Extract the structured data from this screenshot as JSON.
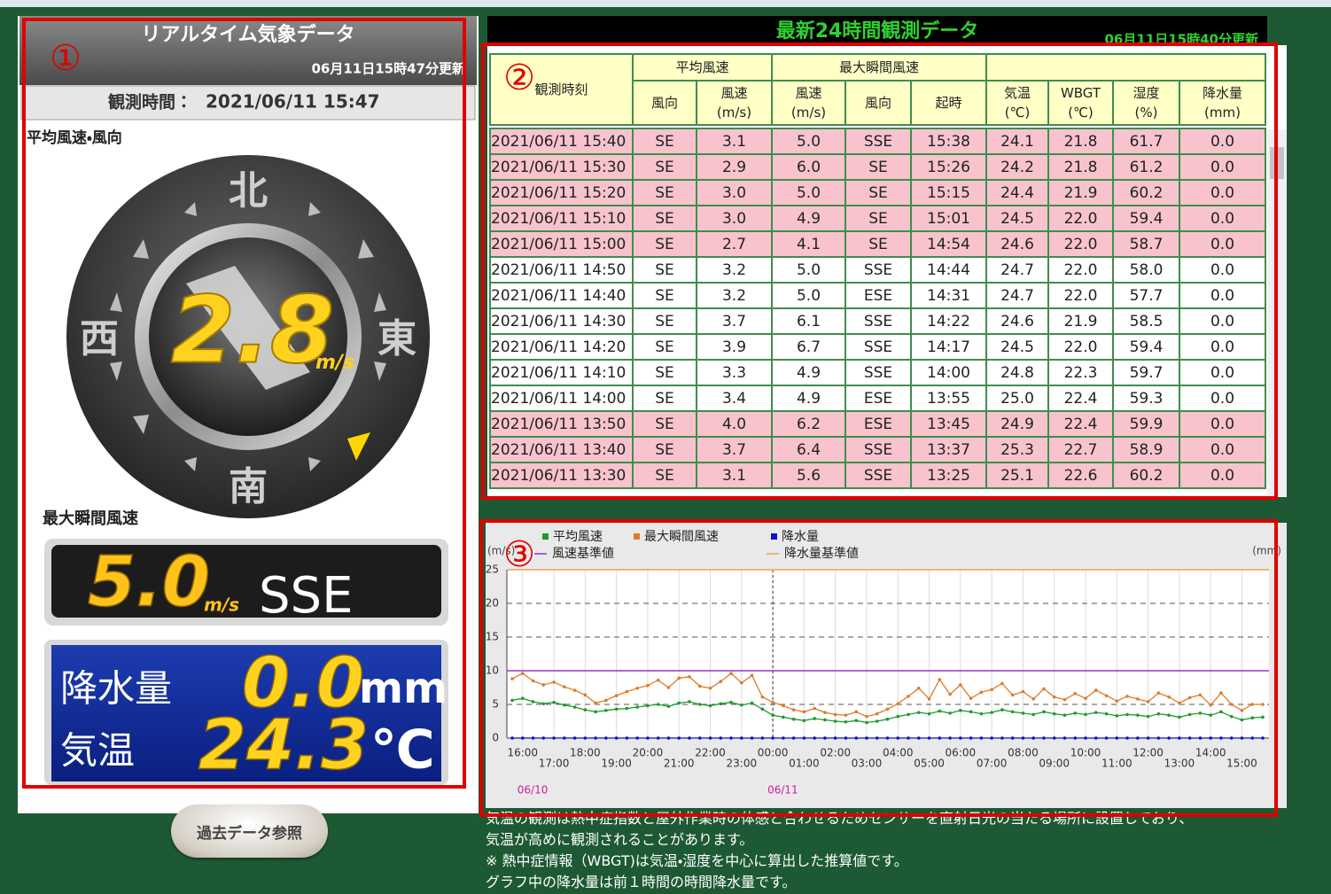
{
  "annotations": [
    "①",
    "②",
    "③"
  ],
  "realtime": {
    "title": "リアルタイム気象データ",
    "updated": "06月11日15時47分更新",
    "obs_label": "観測時間：",
    "obs_time": "2021/06/11 15:47",
    "avg_label": "平均風速・風向",
    "directions": {
      "north": "北",
      "east": "東",
      "south": "南",
      "west": "西"
    },
    "avg_speed": "2.8",
    "speed_unit": "m/s",
    "max_label": "最大瞬間風速",
    "max_speed": "5.0",
    "max_unit": "m/s",
    "max_direction": "SSE",
    "rain_label": "降水量",
    "rain": "0.0",
    "rain_unit": "mm",
    "temp_label": "気温",
    "temp": "24.3",
    "temp_unit": "℃"
  },
  "button": "過去データ参照",
  "table": {
    "title": "最新24時間観測データ",
    "updated": "06月11日15時40分更新",
    "highlight_color": "#f8c3cc",
    "header": {
      "time": "観測時刻",
      "avg_group": "平均風速",
      "max_group": "最大瞬間風速",
      "columns": [
        {
          "label": "風向"
        },
        {
          "label": "風速",
          "unit": "(m/s)"
        },
        {
          "label": "風速",
          "unit": "(m/s)"
        },
        {
          "label": "風向"
        },
        {
          "label": "起時"
        },
        {
          "label": "気温",
          "unit": "(℃)"
        },
        {
          "label": "WBGT",
          "unit": "(℃)"
        },
        {
          "label": "湿度",
          "unit": "(%)"
        },
        {
          "label": "降水量",
          "unit": "(mm)"
        }
      ]
    },
    "rows": [
      {
        "highlight": true,
        "cells": [
          "2021/06/11 15:40",
          "SE",
          "3.1",
          "5.0",
          "SSE",
          "15:38",
          "24.1",
          "21.8",
          "61.7",
          "0.0"
        ]
      },
      {
        "highlight": true,
        "cells": [
          "2021/06/11 15:30",
          "SE",
          "2.9",
          "6.0",
          "SE",
          "15:26",
          "24.2",
          "21.8",
          "61.2",
          "0.0"
        ]
      },
      {
        "highlight": true,
        "cells": [
          "2021/06/11 15:20",
          "SE",
          "3.0",
          "5.0",
          "SE",
          "15:15",
          "24.4",
          "21.9",
          "60.2",
          "0.0"
        ]
      },
      {
        "highlight": true,
        "cells": [
          "2021/06/11 15:10",
          "SE",
          "3.0",
          "4.9",
          "SE",
          "15:01",
          "24.5",
          "22.0",
          "59.4",
          "0.0"
        ]
      },
      {
        "highlight": true,
        "cells": [
          "2021/06/11 15:00",
          "SE",
          "2.7",
          "4.1",
          "SE",
          "14:54",
          "24.6",
          "22.0",
          "58.7",
          "0.0"
        ]
      },
      {
        "highlight": false,
        "cells": [
          "2021/06/11 14:50",
          "SE",
          "3.2",
          "5.0",
          "SSE",
          "14:44",
          "24.7",
          "22.0",
          "58.0",
          "0.0"
        ]
      },
      {
        "highlight": false,
        "cells": [
          "2021/06/11 14:40",
          "SE",
          "3.2",
          "5.0",
          "ESE",
          "14:31",
          "24.7",
          "22.0",
          "57.7",
          "0.0"
        ]
      },
      {
        "highlight": false,
        "cells": [
          "2021/06/11 14:30",
          "SE",
          "3.7",
          "6.1",
          "SSE",
          "14:22",
          "24.6",
          "21.9",
          "58.5",
          "0.0"
        ]
      },
      {
        "highlight": false,
        "cells": [
          "2021/06/11 14:20",
          "SE",
          "3.9",
          "6.7",
          "SSE",
          "14:17",
          "24.5",
          "22.0",
          "59.4",
          "0.0"
        ]
      },
      {
        "highlight": false,
        "cells": [
          "2021/06/11 14:10",
          "SE",
          "3.3",
          "4.9",
          "SSE",
          "14:00",
          "24.8",
          "22.3",
          "59.7",
          "0.0"
        ]
      },
      {
        "highlight": false,
        "cells": [
          "2021/06/11 14:00",
          "SE",
          "3.4",
          "4.9",
          "ESE",
          "13:55",
          "25.0",
          "22.4",
          "59.3",
          "0.0"
        ]
      },
      {
        "highlight": true,
        "cells": [
          "2021/06/11 13:50",
          "SE",
          "4.0",
          "6.2",
          "ESE",
          "13:45",
          "24.9",
          "22.4",
          "59.9",
          "0.0"
        ]
      },
      {
        "highlight": true,
        "cells": [
          "2021/06/11 13:40",
          "SE",
          "3.7",
          "6.4",
          "SSE",
          "13:37",
          "25.3",
          "22.7",
          "58.9",
          "0.0"
        ]
      },
      {
        "highlight": true,
        "cells": [
          "2021/06/11 13:30",
          "SE",
          "3.1",
          "5.6",
          "SSE",
          "13:25",
          "25.1",
          "22.6",
          "60.2",
          "0.0"
        ]
      }
    ]
  },
  "chart_data": {
    "type": "line",
    "y_label": "(m/s)",
    "y2_label": "(mm)",
    "ylim": [
      0,
      25
    ],
    "yticks": [
      0,
      5,
      10,
      15,
      20,
      25
    ],
    "grid": true,
    "categories": [
      null,
      "16:00",
      null,
      null,
      "17:00",
      null,
      null,
      "18:00",
      null,
      null,
      "19:00",
      null,
      null,
      "20:00",
      null,
      null,
      "21:00",
      null,
      null,
      "22:00",
      null,
      null,
      "23:00",
      null,
      null,
      "00:00",
      null,
      null,
      "01:00",
      null,
      null,
      "02:00",
      null,
      null,
      "03:00",
      null,
      null,
      "04:00",
      null,
      null,
      "05:00",
      null,
      null,
      "06:00",
      null,
      null,
      "07:00",
      null,
      null,
      "08:00",
      null,
      null,
      "09:00",
      null,
      null,
      "10:00",
      null,
      null,
      "11:00",
      null,
      null,
      "12:00",
      null,
      null,
      "13:00",
      null,
      null,
      "14:00",
      null,
      null,
      "15:00",
      null,
      null
    ],
    "date_marks": [
      {
        "index": 1,
        "label": "06/10"
      },
      {
        "index": 25,
        "label": "06/11"
      }
    ],
    "series": [
      {
        "name": "平均風速",
        "color": "#1f9a2e",
        "values": [
          5.6,
          5.9,
          5.4,
          5.1,
          5.3,
          4.9,
          4.6,
          4.2,
          3.9,
          4.1,
          4.3,
          4.4,
          4.6,
          4.8,
          5.0,
          4.7,
          5.2,
          5.4,
          5.0,
          4.8,
          5.1,
          5.3,
          4.9,
          5.2,
          4.3,
          3.4,
          3.1,
          2.8,
          2.6,
          2.9,
          2.7,
          2.5,
          2.4,
          2.6,
          2.3,
          2.5,
          2.8,
          3.2,
          3.5,
          3.8,
          3.6,
          4.0,
          3.7,
          4.1,
          3.9,
          3.6,
          3.8,
          4.2,
          3.9,
          3.7,
          3.5,
          3.9,
          3.6,
          3.4,
          3.7,
          3.5,
          3.8,
          3.6,
          3.3,
          3.5,
          3.4,
          3.2,
          3.6,
          3.4,
          3.1,
          3.5,
          3.7,
          3.4,
          3.9,
          3.2,
          2.7,
          3.0,
          3.1
        ]
      },
      {
        "name": "最大瞬間風速",
        "color": "#e07b28",
        "values": [
          8.8,
          9.6,
          8.5,
          7.9,
          8.3,
          7.6,
          7.1,
          6.4,
          5.2,
          5.6,
          6.3,
          6.9,
          7.4,
          7.8,
          8.6,
          7.5,
          8.9,
          9.1,
          7.7,
          7.4,
          8.4,
          9.6,
          8.2,
          9.3,
          6.1,
          5.3,
          4.8,
          4.2,
          3.9,
          4.4,
          3.8,
          3.5,
          3.4,
          3.9,
          3.2,
          3.6,
          4.3,
          5.1,
          6.2,
          7.4,
          5.8,
          8.7,
          6.5,
          7.9,
          5.9,
          6.8,
          7.2,
          8.1,
          6.4,
          6.9,
          5.8,
          7.3,
          6.1,
          5.7,
          6.6,
          5.9,
          7.1,
          6.3,
          5.5,
          6.2,
          5.8,
          5.4,
          6.7,
          6.1,
          5.2,
          6.0,
          6.4,
          4.9,
          6.7,
          5.0,
          4.1,
          5.0,
          5.0
        ]
      },
      {
        "name": "降水量",
        "color": "#1010d0",
        "values": [
          0,
          0,
          0,
          0,
          0,
          0,
          0,
          0,
          0,
          0,
          0,
          0,
          0,
          0,
          0,
          0,
          0,
          0,
          0,
          0,
          0,
          0,
          0,
          0,
          0,
          0,
          0,
          0,
          0,
          0,
          0,
          0,
          0,
          0,
          0,
          0,
          0,
          0,
          0,
          0,
          0,
          0,
          0,
          0,
          0,
          0,
          0,
          0,
          0,
          0,
          0,
          0,
          0,
          0,
          0,
          0,
          0,
          0,
          0,
          0,
          0,
          0,
          0,
          0,
          0,
          0,
          0,
          0,
          0,
          0,
          0,
          0,
          0
        ]
      }
    ],
    "reference_lines": [
      {
        "name": "風速基準値",
        "color": "#9b30d0",
        "value": 10
      },
      {
        "name": "降水量基準値",
        "color": "#f0a050",
        "value": 25
      }
    ]
  },
  "notes": [
    "気温の観測は熱中症指数と屋外作業時の体感と合わせるためセンサーを直射日光の当たる場所に設置しており、",
    "気温が高めに観測されることがあります。",
    "※ 熱中症情報（WBGT)は気温・湿度を中心に算出した推算値です。",
    "グラフ中の降水量は前１時間の時間降水量です。"
  ]
}
